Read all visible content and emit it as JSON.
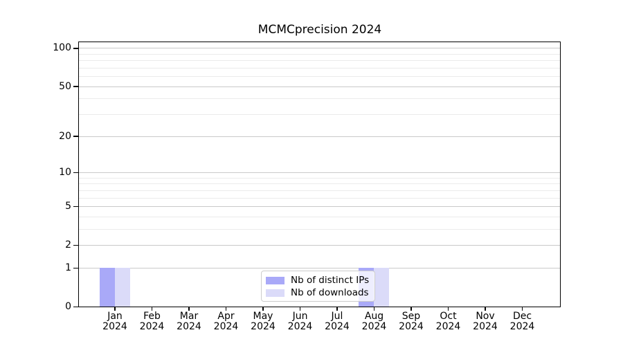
{
  "figure_title": "MCMCprecision 2024",
  "chart_data": {
    "type": "bar",
    "title": "MCMCprecision 2024",
    "categories": [
      "Jan 2024",
      "Feb 2024",
      "Mar 2024",
      "Apr 2024",
      "May 2024",
      "Jun 2024",
      "Jul 2024",
      "Aug 2024",
      "Sep 2024",
      "Oct 2024",
      "Nov 2024",
      "Dec 2024"
    ],
    "series": [
      {
        "name": "Nb of distinct IPs",
        "color": "#a9a9f8",
        "values": [
          1,
          0,
          0,
          0,
          0,
          0,
          0,
          1,
          0,
          0,
          0,
          0
        ]
      },
      {
        "name": "Nb of downloads",
        "color": "#dbdbf9",
        "values": [
          1,
          0,
          0,
          0,
          0,
          0,
          0,
          1,
          0,
          0,
          0,
          0
        ]
      }
    ],
    "xlabel": "",
    "ylabel": "",
    "yscale": "pseudo-log log10(1+y)",
    "ylim": [
      0,
      113
    ],
    "yticks_major": [
      0,
      1,
      2,
      5,
      10,
      20,
      50,
      100
    ],
    "yticks_minor": [
      3,
      4,
      6,
      7,
      8,
      9,
      30,
      40,
      60,
      70,
      80,
      90
    ],
    "grid": "horizontal, major and minor",
    "legend_position": "lower center inside plot"
  },
  "colors": {
    "background": "#ffffff",
    "axis": "#000000",
    "grid_major": "#c9c9c9",
    "grid_minor": "#ebebeb",
    "legend_border": "#cccccc",
    "legend_background": "rgba(255,255,255,0.8)"
  }
}
